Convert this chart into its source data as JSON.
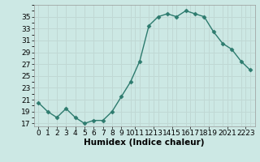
{
  "x": [
    0,
    1,
    2,
    3,
    4,
    5,
    6,
    7,
    8,
    9,
    10,
    11,
    12,
    13,
    14,
    15,
    16,
    17,
    18,
    19,
    20,
    21,
    22,
    23
  ],
  "y": [
    20.5,
    19.0,
    18.0,
    19.5,
    18.0,
    17.0,
    17.5,
    17.5,
    19.0,
    21.5,
    24.0,
    27.5,
    33.5,
    35.0,
    35.5,
    35.0,
    36.0,
    35.5,
    35.0,
    32.5,
    30.5,
    29.5,
    27.5,
    26.0
  ],
  "line_color": "#2d7b6e",
  "marker": "D",
  "marker_size": 2.5,
  "bg_color": "#cce8e4",
  "grid_color": "#c0d8d4",
  "xlabel": "Humidex (Indice chaleur)",
  "xlabel_fontsize": 7.5,
  "tick_fontsize": 6.5,
  "ylim": [
    16.5,
    37
  ],
  "yticks": [
    17,
    19,
    21,
    23,
    25,
    27,
    29,
    31,
    33,
    35
  ],
  "xtick_labels": [
    "0",
    "1",
    "2",
    "3",
    "4",
    "5",
    "6",
    "7",
    "8",
    "9",
    "1011",
    "1213",
    "1415",
    "1617",
    "1819",
    "2021",
    "2223"
  ],
  "xlim": [
    -0.5,
    23.5
  ]
}
